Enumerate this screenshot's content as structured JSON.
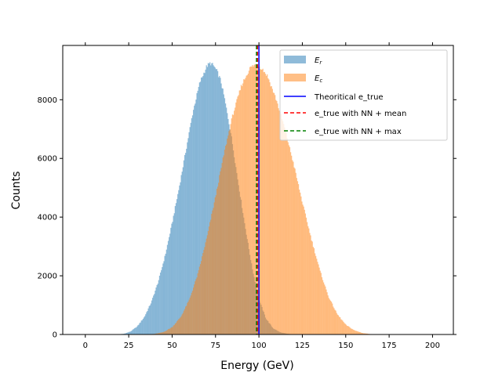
{
  "chart_data": {
    "type": "histogram",
    "title": "",
    "xlabel": "Energy (GeV)",
    "ylabel": "Counts",
    "xlim": [
      -13,
      212
    ],
    "ylim": [
      0,
      9850
    ],
    "xticks": [
      0,
      25,
      50,
      75,
      100,
      125,
      150,
      175,
      200
    ],
    "yticks": [
      0,
      2000,
      4000,
      6000,
      8000
    ],
    "grid": false,
    "legend_position": "upper right",
    "series": [
      {
        "name": "E_r",
        "label_main": "E",
        "label_sub": "r",
        "kind": "histogram",
        "color": "#1f77b4",
        "alpha": 0.5,
        "bin_width": 0.5,
        "x": [
          18,
          22,
          26,
          30,
          34,
          38,
          42,
          46,
          50,
          54,
          58,
          62,
          66,
          70,
          72,
          74,
          76,
          78,
          80,
          84,
          88,
          92,
          96,
          100,
          104,
          108,
          112,
          116,
          120,
          125
        ],
        "y": [
          0,
          20,
          100,
          280,
          600,
          1100,
          1800,
          2700,
          3800,
          5000,
          6300,
          7600,
          8600,
          9150,
          9250,
          9150,
          8950,
          8650,
          8100,
          6800,
          5200,
          3700,
          2300,
          1200,
          550,
          220,
          80,
          25,
          5,
          0
        ]
      },
      {
        "name": "E_c",
        "label_main": "E",
        "label_sub": "c",
        "kind": "histogram",
        "color": "#ff7f0e",
        "alpha": 0.5,
        "bin_width": 0.5,
        "x": [
          35,
          40,
          45,
          50,
          55,
          60,
          65,
          70,
          75,
          80,
          85,
          90,
          95,
          98,
          100,
          102,
          105,
          110,
          115,
          120,
          125,
          130,
          135,
          140,
          145,
          150,
          155,
          160,
          165,
          168
        ],
        "y": [
          0,
          20,
          80,
          250,
          600,
          1200,
          2100,
          3300,
          4700,
          6200,
          7500,
          8500,
          9100,
          9200,
          9150,
          9050,
          8800,
          8000,
          7000,
          5800,
          4500,
          3300,
          2200,
          1300,
          700,
          330,
          140,
          45,
          10,
          0
        ]
      },
      {
        "name": "Theoritical e_true",
        "kind": "vline",
        "x": 100,
        "color": "#0000ff",
        "style": "solid"
      },
      {
        "name": "e_true with NN + mean",
        "kind": "vline",
        "x": 99.2,
        "color": "#ff0000",
        "style": "dashed"
      },
      {
        "name": "e_true with NN + max",
        "kind": "vline",
        "x": 98.6,
        "color": "#008000",
        "style": "dashed"
      }
    ]
  }
}
